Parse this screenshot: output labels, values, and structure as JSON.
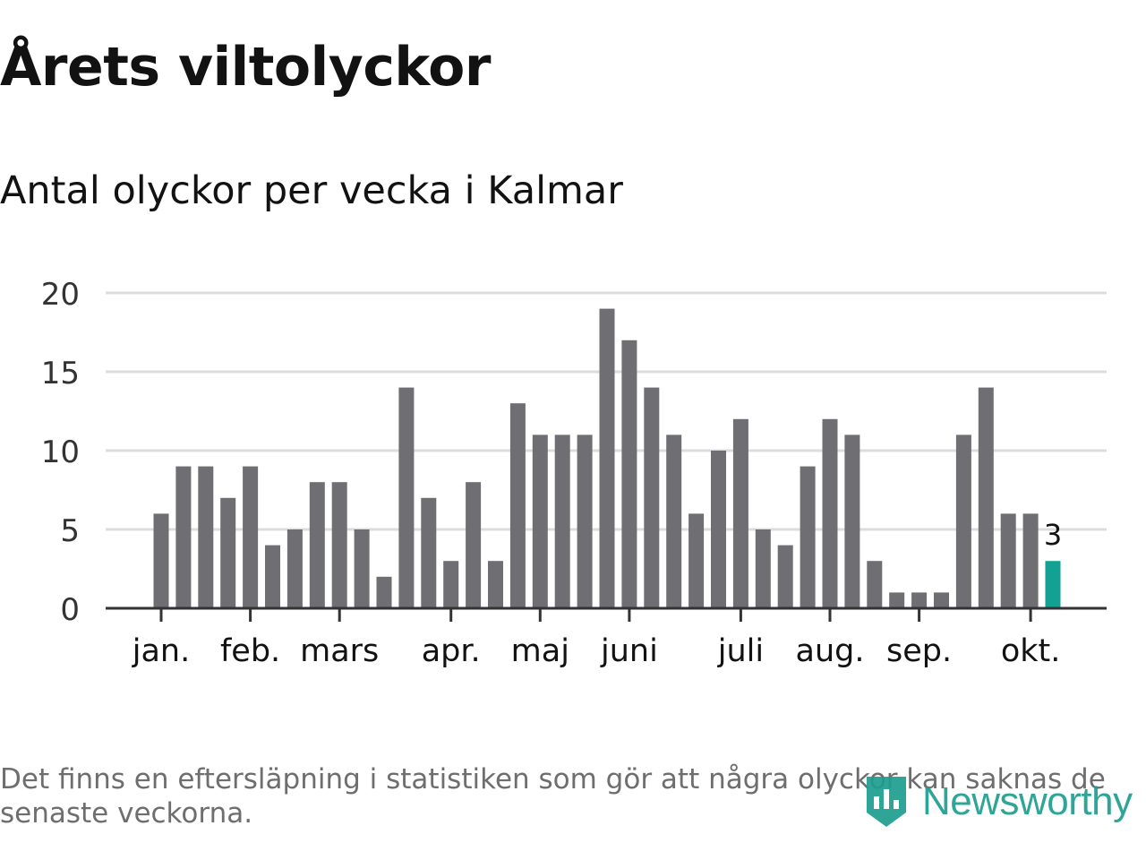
{
  "header": {
    "title": "Årets viltolyckor",
    "subtitle": "Antal olyckor per vecka i Kalmar"
  },
  "footer": {
    "note": "Det finns en eftersläpning i statistiken som gör att några olyckor kan saknas de senaste veckorna.",
    "brand": "Newsworthy"
  },
  "colors": {
    "bar": "#6f6e73",
    "highlight": "#12a192",
    "grid": "#dcdcdc",
    "axis": "#333333",
    "text": "#121212",
    "brand": "#1e9e8f"
  },
  "icons": {
    "brand_logo": "newsworthy-logo-icon"
  },
  "chart_data": {
    "type": "bar",
    "title": "Antal olyckor per vecka i Kalmar",
    "xlabel": "",
    "ylabel": "",
    "ylim": [
      0,
      20
    ],
    "yticks": [
      0,
      5,
      10,
      15,
      20
    ],
    "grid": true,
    "values": [
      6,
      9,
      9,
      7,
      9,
      4,
      5,
      8,
      8,
      5,
      2,
      14,
      7,
      3,
      8,
      3,
      13,
      11,
      11,
      11,
      19,
      17,
      14,
      11,
      6,
      10,
      12,
      5,
      4,
      9,
      12,
      11,
      3,
      1,
      1,
      1,
      11,
      14,
      6,
      6,
      3
    ],
    "highlight_index": 40,
    "highlight_label": "3",
    "month_ticks": [
      {
        "label": "jan.",
        "bar_index": 0
      },
      {
        "label": "feb.",
        "bar_index": 4
      },
      {
        "label": "mars",
        "bar_index": 8
      },
      {
        "label": "apr.",
        "bar_index": 13
      },
      {
        "label": "maj",
        "bar_index": 17
      },
      {
        "label": "juni",
        "bar_index": 21
      },
      {
        "label": "juli",
        "bar_index": 26
      },
      {
        "label": "aug.",
        "bar_index": 30
      },
      {
        "label": "sep.",
        "bar_index": 34
      },
      {
        "label": "okt.",
        "bar_index": 39
      }
    ]
  }
}
